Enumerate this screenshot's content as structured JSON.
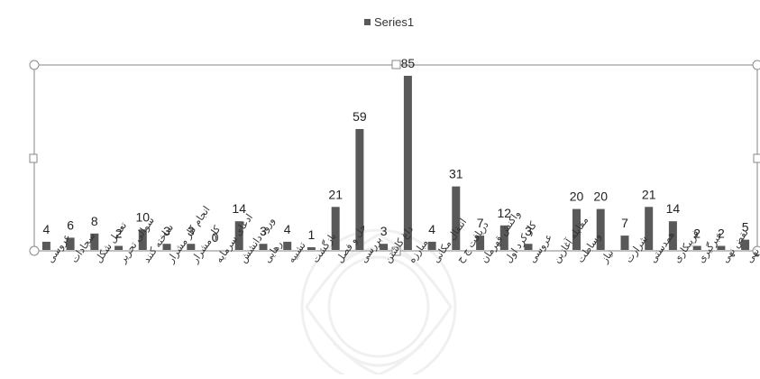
{
  "chart_data": {
    "type": "bar",
    "title": "",
    "xlabel": "",
    "ylabel": "",
    "ylim": [
      0,
      90
    ],
    "grid": false,
    "legend_position": "top-center",
    "series": [
      {
        "name": "Series1",
        "color": "#595959",
        "values": [
          4,
          6,
          8,
          2,
          10,
          3,
          3,
          0,
          14,
          3,
          4,
          1,
          21,
          59,
          3,
          85,
          4,
          31,
          7,
          12,
          3,
          0,
          20,
          20,
          7,
          21,
          14,
          2,
          2,
          5
        ]
      }
    ],
    "data_labels": [
      "4",
      "6",
      "8",
      "2",
      "10",
      "3",
      "3",
      "0",
      "14",
      "3",
      "4",
      "1",
      "21",
      "59",
      "3",
      "85",
      "4",
      "31",
      "7",
      "12",
      "3",
      "",
      "20",
      "20",
      "7",
      "21",
      "14",
      "2",
      "2",
      "5"
    ],
    "categories": [
      "عروسی",
      "سجادات",
      "تعدیل شکل",
      "سوالی تحریر",
      "ساخته کنند",
      "انجام کار مشرار",
      "کار مشرار",
      "ادعای سرمایه",
      "ورود دانشش",
      "رهایی",
      "تشبیه",
      "بازگشت",
      "حل و فصل",
      "بررسی",
      "داغ کاشتن",
      "مبارزه",
      "انتقال مکانی",
      "دریافت ج ح",
      "واکنش قهرمان",
      "کار کرد اول",
      "عروسی",
      "مقابله آغازین",
      "وساطت",
      "نیاز",
      "شرارت",
      "همدستی",
      "فریبکاری",
      "خبرگیری",
      "نقض نهی",
      "نهی"
    ],
    "last_category": "غیبت"
  }
}
